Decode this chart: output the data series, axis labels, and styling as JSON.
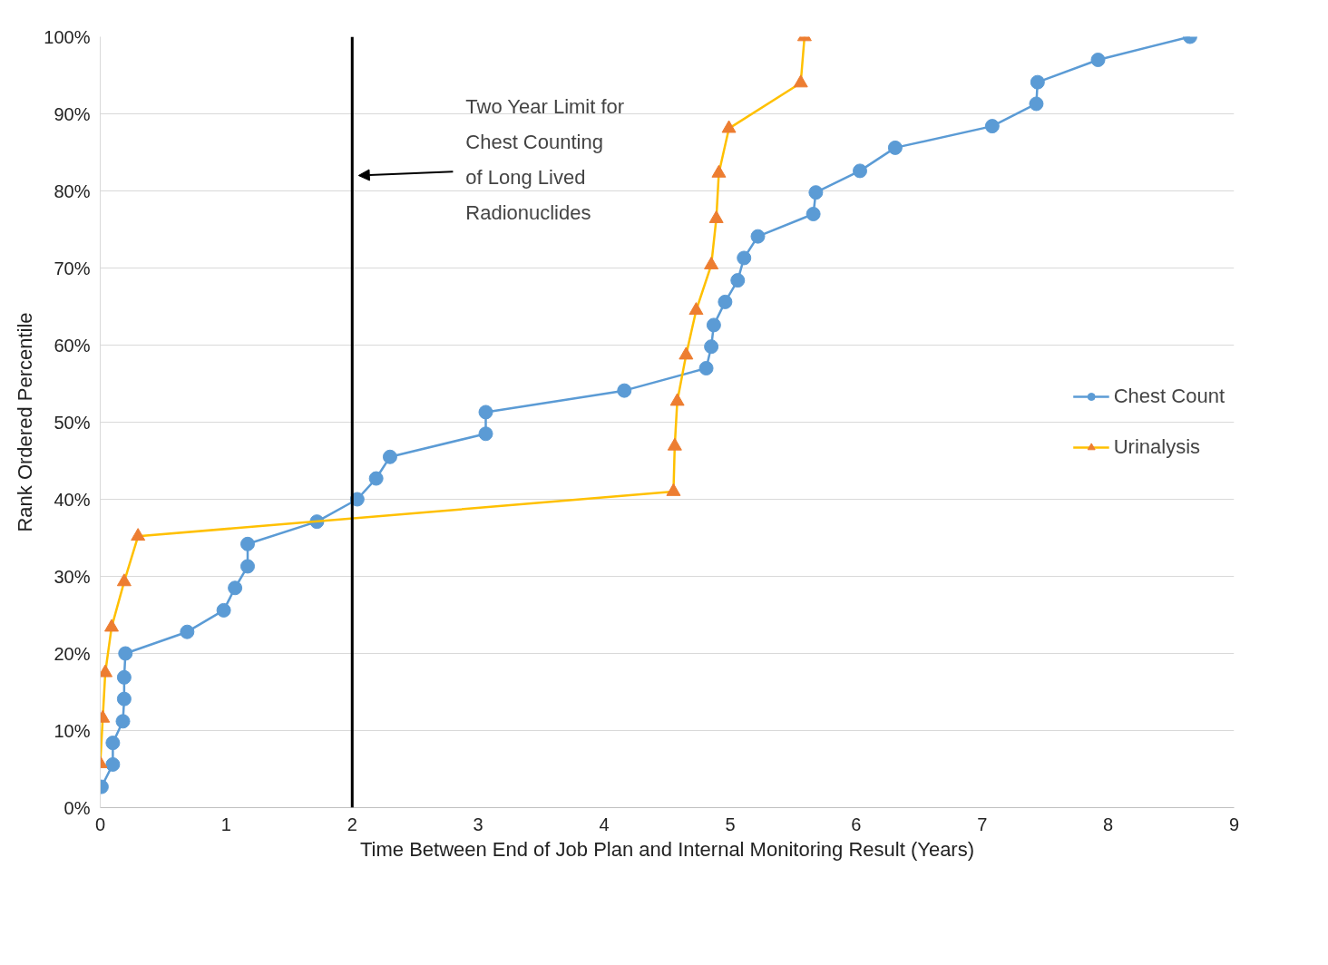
{
  "chart_data": {
    "type": "line",
    "xlabel": "Time Between End of Job Plan and Internal Monitoring Result (Years)",
    "ylabel": "Rank Ordered Percentile",
    "xlim": [
      0,
      9
    ],
    "xticks": [
      0,
      1,
      2,
      3,
      4,
      5,
      6,
      7,
      8,
      9
    ],
    "ylim": [
      0,
      100
    ],
    "yticks": [
      {
        "value": 0,
        "label": "0%"
      },
      {
        "value": 10,
        "label": "10%"
      },
      {
        "value": 20,
        "label": "20%"
      },
      {
        "value": 30,
        "label": "30%"
      },
      {
        "value": 40,
        "label": "40%"
      },
      {
        "value": 50,
        "label": "50%"
      },
      {
        "value": 60,
        "label": "60%"
      },
      {
        "value": 70,
        "label": "70%"
      },
      {
        "value": 80,
        "label": "80%"
      },
      {
        "value": 90,
        "label": "90%"
      },
      {
        "value": 100,
        "label": "100%"
      }
    ],
    "grid": "y",
    "legend": "right",
    "series": [
      {
        "name": "Chest Count",
        "color": "#5b9bd5",
        "marker": "circle",
        "x": [
          0.01,
          0.1,
          0.1,
          0.18,
          0.19,
          0.19,
          0.2,
          0.69,
          0.98,
          1.07,
          1.17,
          1.17,
          1.72,
          2.04,
          2.19,
          2.3,
          3.06,
          3.06,
          4.16,
          4.81,
          4.85,
          4.87,
          4.96,
          5.06,
          5.11,
          5.22,
          5.66,
          5.68,
          6.03,
          6.31,
          7.08,
          7.43,
          7.44,
          7.92,
          8.65
        ],
        "values": [
          2.7,
          5.6,
          8.4,
          11.2,
          14.1,
          16.9,
          20.0,
          22.8,
          25.6,
          28.5,
          31.3,
          34.2,
          37.1,
          40.0,
          42.7,
          45.5,
          48.5,
          51.3,
          54.1,
          57.0,
          59.8,
          62.6,
          65.6,
          68.4,
          71.3,
          74.1,
          77.0,
          79.8,
          82.6,
          85.6,
          88.4,
          91.3,
          94.1,
          97.0,
          100
        ]
      },
      {
        "name": "Urinalysis",
        "color": "#ffc000",
        "marker": "triangle",
        "x": [
          0.0,
          0.02,
          0.04,
          0.09,
          0.19,
          0.3,
          4.55,
          4.56,
          4.58,
          4.65,
          4.73,
          4.85,
          4.89,
          4.91,
          4.99,
          5.56,
          5.59
        ],
        "values": [
          5.7,
          11.6,
          17.5,
          23.4,
          29.3,
          35.2,
          41.0,
          46.9,
          52.7,
          58.7,
          64.5,
          70.4,
          76.4,
          82.3,
          88.1,
          94.0,
          100
        ]
      }
    ],
    "ref_lines": [
      {
        "axis": "x",
        "value": 2,
        "color": "#000000"
      }
    ],
    "annotations": [
      "Two Year Limit for\nChest Counting\nof Long Lived\nRadionuclides"
    ]
  }
}
